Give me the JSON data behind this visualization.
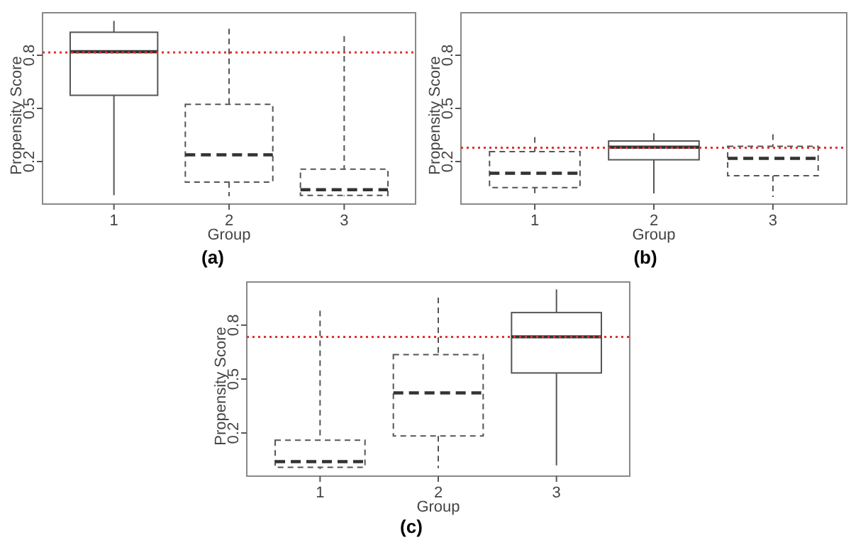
{
  "chart_data": [
    {
      "type": "box",
      "xlabel": "Group",
      "ylabel": "Propensity Score",
      "annotations": [
        "(a)"
      ],
      "categories": [
        "1",
        "2",
        "3"
      ],
      "ylim": [
        -0.04,
        1.04
      ],
      "yticks": [
        0.2,
        0.5,
        0.8
      ],
      "grid": false,
      "ref_lines": [
        {
          "axis": "y",
          "value": 0.816,
          "color": "#e03030",
          "line_style": "dotted"
        }
      ],
      "series": [
        {
          "color": "#555555",
          "line_style": "solid",
          "boxes": [
            {
              "low": 0.01,
              "q1": 0.574,
              "median": 0.82,
              "q3": 0.93,
              "high": 0.994
            },
            null,
            null
          ]
        },
        {
          "color": "#555555",
          "line_style": "dashed",
          "boxes": [
            null,
            {
              "low": 0.004,
              "q1": 0.084,
              "median": 0.238,
              "q3": 0.523,
              "high": 0.95
            },
            {
              "low": 0.005,
              "q1": 0.009,
              "median": 0.041,
              "q3": 0.157,
              "high": 0.908
            }
          ]
        }
      ]
    },
    {
      "type": "box",
      "xlabel": "Group",
      "ylabel": "Propensity Score",
      "annotations": [
        "(b)"
      ],
      "categories": [
        "1",
        "2",
        "3"
      ],
      "ylim": [
        -0.04,
        1.04
      ],
      "yticks": [
        0.2,
        0.5,
        0.8
      ],
      "grid": false,
      "ref_lines": [
        {
          "axis": "y",
          "value": 0.278,
          "color": "#e03030",
          "line_style": "dotted"
        }
      ],
      "series": [
        {
          "color": "#555555",
          "line_style": "solid",
          "boxes": [
            null,
            {
              "low": 0.02,
              "q1": 0.21,
              "median": 0.281,
              "q3": 0.316,
              "high": 0.36
            },
            null
          ]
        },
        {
          "color": "#555555",
          "line_style": "dashed",
          "boxes": [
            {
              "low": 0.02,
              "q1": 0.053,
              "median": 0.134,
              "q3": 0.256,
              "high": 0.338
            },
            null,
            {
              "low": 0.0,
              "q1": 0.12,
              "median": 0.218,
              "q3": 0.286,
              "high": 0.354
            }
          ]
        }
      ]
    },
    {
      "type": "box",
      "xlabel": "Group",
      "ylabel": "Propensity Score",
      "annotations": [
        "(c)"
      ],
      "categories": [
        "1",
        "2",
        "3"
      ],
      "ylim": [
        -0.04,
        1.04
      ],
      "yticks": [
        0.2,
        0.5,
        0.8
      ],
      "grid": false,
      "ref_lines": [
        {
          "axis": "y",
          "value": 0.735,
          "color": "#e03030",
          "line_style": "dotted"
        }
      ],
      "series": [
        {
          "color": "#555555",
          "line_style": "solid",
          "boxes": [
            null,
            null,
            {
              "low": 0.02,
              "q1": 0.534,
              "median": 0.735,
              "q3": 0.87,
              "high": 0.999
            }
          ]
        },
        {
          "color": "#555555",
          "line_style": "dashed",
          "boxes": [
            {
              "low": 0.0,
              "q1": 0.009,
              "median": 0.041,
              "q3": 0.16,
              "high": 0.88
            },
            {
              "low": 0.004,
              "q1": 0.184,
              "median": 0.423,
              "q3": 0.636,
              "high": 0.953
            },
            null
          ]
        }
      ]
    }
  ]
}
